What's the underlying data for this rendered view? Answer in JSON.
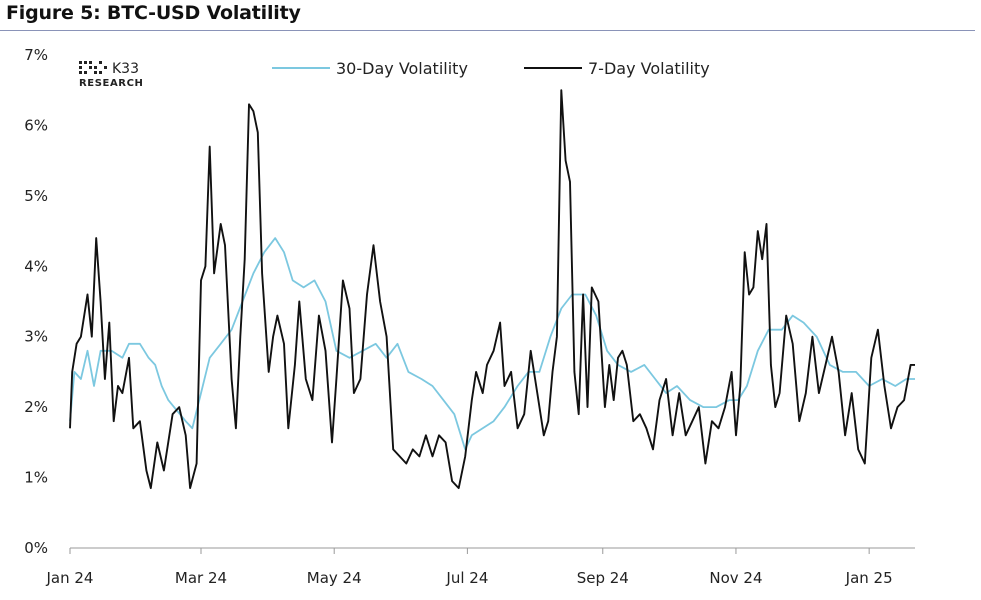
{
  "figure": {
    "title": "Figure 5: BTC-USD Volatility"
  },
  "logo": {
    "name": "K33",
    "sub": "RESEARCH"
  },
  "colors": {
    "series_30d": "#7cc8e0",
    "series_7d": "#111111",
    "axis": "#9a9a9a",
    "title_rule": "#8a93b8"
  },
  "chart_data": {
    "type": "line",
    "title": "Figure 5: BTC-USD Volatility",
    "xlabel": "",
    "ylabel": "",
    "x_ticks": [
      "Jan 24",
      "Mar 24",
      "May 24",
      "Jul 24",
      "Sep 24",
      "Nov 24",
      "Jan 25"
    ],
    "x_tick_dates": [
      "2024-01-01",
      "2024-03-01",
      "2024-05-01",
      "2024-07-01",
      "2024-09-01",
      "2024-11-01",
      "2025-01-01"
    ],
    "y_ticks": [
      "0%",
      "1%",
      "2%",
      "3%",
      "4%",
      "5%",
      "6%",
      "7%"
    ],
    "ylim": [
      0,
      7
    ],
    "xlim": [
      "2024-01-01",
      "2025-01-22"
    ],
    "y_unit": "%",
    "grid": false,
    "legend": {
      "placement": "top-center",
      "entries": [
        "30-Day Volatility",
        "7-Day Volatility"
      ]
    },
    "series": [
      {
        "name": "30-Day Volatility",
        "color": "#7cc8e0",
        "points": [
          [
            "2024-01-01",
            1.8
          ],
          [
            "2024-01-03",
            2.5
          ],
          [
            "2024-01-06",
            2.4
          ],
          [
            "2024-01-09",
            2.8
          ],
          [
            "2024-01-12",
            2.3
          ],
          [
            "2024-01-15",
            2.8
          ],
          [
            "2024-01-20",
            2.8
          ],
          [
            "2024-01-25",
            2.7
          ],
          [
            "2024-01-28",
            2.9
          ],
          [
            "2024-02-02",
            2.9
          ],
          [
            "2024-02-06",
            2.7
          ],
          [
            "2024-02-09",
            2.6
          ],
          [
            "2024-02-12",
            2.3
          ],
          [
            "2024-02-15",
            2.1
          ],
          [
            "2024-02-19",
            1.95
          ],
          [
            "2024-02-23",
            1.8
          ],
          [
            "2024-02-26",
            1.7
          ],
          [
            "2024-03-01",
            2.2
          ],
          [
            "2024-03-05",
            2.7
          ],
          [
            "2024-03-10",
            2.9
          ],
          [
            "2024-03-15",
            3.1
          ],
          [
            "2024-03-20",
            3.5
          ],
          [
            "2024-03-25",
            3.9
          ],
          [
            "2024-03-30",
            4.2
          ],
          [
            "2024-04-04",
            4.4
          ],
          [
            "2024-04-08",
            4.2
          ],
          [
            "2024-04-12",
            3.8
          ],
          [
            "2024-04-17",
            3.7
          ],
          [
            "2024-04-22",
            3.8
          ],
          [
            "2024-04-27",
            3.5
          ],
          [
            "2024-05-02",
            2.8
          ],
          [
            "2024-05-08",
            2.7
          ],
          [
            "2024-05-14",
            2.8
          ],
          [
            "2024-05-20",
            2.9
          ],
          [
            "2024-05-25",
            2.7
          ],
          [
            "2024-05-30",
            2.9
          ],
          [
            "2024-06-04",
            2.5
          ],
          [
            "2024-06-10",
            2.4
          ],
          [
            "2024-06-15",
            2.3
          ],
          [
            "2024-06-20",
            2.1
          ],
          [
            "2024-06-25",
            1.9
          ],
          [
            "2024-06-30",
            1.4
          ],
          [
            "2024-07-03",
            1.6
          ],
          [
            "2024-07-08",
            1.7
          ],
          [
            "2024-07-13",
            1.8
          ],
          [
            "2024-07-18",
            2.0
          ],
          [
            "2024-07-24",
            2.3
          ],
          [
            "2024-07-29",
            2.5
          ],
          [
            "2024-08-03",
            2.5
          ],
          [
            "2024-08-08",
            3.0
          ],
          [
            "2024-08-13",
            3.4
          ],
          [
            "2024-08-18",
            3.6
          ],
          [
            "2024-08-24",
            3.6
          ],
          [
            "2024-08-29",
            3.3
          ],
          [
            "2024-09-03",
            2.8
          ],
          [
            "2024-09-08",
            2.6
          ],
          [
            "2024-09-14",
            2.5
          ],
          [
            "2024-09-20",
            2.6
          ],
          [
            "2024-09-25",
            2.4
          ],
          [
            "2024-09-30",
            2.2
          ],
          [
            "2024-10-05",
            2.3
          ],
          [
            "2024-10-11",
            2.1
          ],
          [
            "2024-10-17",
            2.0
          ],
          [
            "2024-10-23",
            2.0
          ],
          [
            "2024-10-29",
            2.1
          ],
          [
            "2024-11-02",
            2.1
          ],
          [
            "2024-11-06",
            2.3
          ],
          [
            "2024-11-11",
            2.8
          ],
          [
            "2024-11-16",
            3.1
          ],
          [
            "2024-11-22",
            3.1
          ],
          [
            "2024-11-27",
            3.3
          ],
          [
            "2024-12-02",
            3.2
          ],
          [
            "2024-12-08",
            3.0
          ],
          [
            "2024-12-14",
            2.6
          ],
          [
            "2024-12-20",
            2.5
          ],
          [
            "2024-12-26",
            2.5
          ],
          [
            "2025-01-01",
            2.3
          ],
          [
            "2025-01-07",
            2.4
          ],
          [
            "2025-01-13",
            2.3
          ],
          [
            "2025-01-18",
            2.4
          ],
          [
            "2025-01-22",
            2.4
          ]
        ]
      },
      {
        "name": "7-Day Volatility",
        "color": "#111111",
        "points": [
          [
            "2024-01-01",
            1.7
          ],
          [
            "2024-01-02",
            2.5
          ],
          [
            "2024-01-04",
            2.9
          ],
          [
            "2024-01-06",
            3.0
          ],
          [
            "2024-01-09",
            3.6
          ],
          [
            "2024-01-11",
            3.0
          ],
          [
            "2024-01-13",
            4.4
          ],
          [
            "2024-01-15",
            3.5
          ],
          [
            "2024-01-17",
            2.4
          ],
          [
            "2024-01-19",
            3.2
          ],
          [
            "2024-01-21",
            1.8
          ],
          [
            "2024-01-23",
            2.3
          ],
          [
            "2024-01-25",
            2.2
          ],
          [
            "2024-01-28",
            2.7
          ],
          [
            "2024-01-30",
            1.7
          ],
          [
            "2024-02-02",
            1.8
          ],
          [
            "2024-02-05",
            1.1
          ],
          [
            "2024-02-07",
            0.85
          ],
          [
            "2024-02-10",
            1.5
          ],
          [
            "2024-02-13",
            1.1
          ],
          [
            "2024-02-17",
            1.9
          ],
          [
            "2024-02-20",
            2.0
          ],
          [
            "2024-02-23",
            1.6
          ],
          [
            "2024-02-25",
            0.85
          ],
          [
            "2024-02-28",
            1.2
          ],
          [
            "2024-03-01",
            3.8
          ],
          [
            "2024-03-03",
            4.0
          ],
          [
            "2024-03-05",
            5.7
          ],
          [
            "2024-03-07",
            3.9
          ],
          [
            "2024-03-10",
            4.6
          ],
          [
            "2024-03-12",
            4.3
          ],
          [
            "2024-03-15",
            2.4
          ],
          [
            "2024-03-17",
            1.7
          ],
          [
            "2024-03-19",
            3.0
          ],
          [
            "2024-03-21",
            4.1
          ],
          [
            "2024-03-23",
            6.3
          ],
          [
            "2024-03-25",
            6.2
          ],
          [
            "2024-03-27",
            5.9
          ],
          [
            "2024-03-29",
            3.9
          ],
          [
            "2024-04-01",
            2.5
          ],
          [
            "2024-04-03",
            3.0
          ],
          [
            "2024-04-05",
            3.3
          ],
          [
            "2024-04-08",
            2.9
          ],
          [
            "2024-04-10",
            1.7
          ],
          [
            "2024-04-13",
            2.6
          ],
          [
            "2024-04-15",
            3.5
          ],
          [
            "2024-04-18",
            2.4
          ],
          [
            "2024-04-21",
            2.1
          ],
          [
            "2024-04-24",
            3.3
          ],
          [
            "2024-04-27",
            2.8
          ],
          [
            "2024-04-30",
            1.5
          ],
          [
            "2024-05-02",
            2.4
          ],
          [
            "2024-05-05",
            3.8
          ],
          [
            "2024-05-08",
            3.4
          ],
          [
            "2024-05-10",
            2.2
          ],
          [
            "2024-05-13",
            2.4
          ],
          [
            "2024-05-16",
            3.6
          ],
          [
            "2024-05-19",
            4.3
          ],
          [
            "2024-05-22",
            3.5
          ],
          [
            "2024-05-25",
            3.0
          ],
          [
            "2024-05-28",
            1.4
          ],
          [
            "2024-05-31",
            1.3
          ],
          [
            "2024-06-03",
            1.2
          ],
          [
            "2024-06-06",
            1.4
          ],
          [
            "2024-06-09",
            1.3
          ],
          [
            "2024-06-12",
            1.6
          ],
          [
            "2024-06-15",
            1.3
          ],
          [
            "2024-06-18",
            1.6
          ],
          [
            "2024-06-21",
            1.5
          ],
          [
            "2024-06-24",
            0.95
          ],
          [
            "2024-06-27",
            0.85
          ],
          [
            "2024-06-30",
            1.3
          ],
          [
            "2024-07-03",
            2.1
          ],
          [
            "2024-07-05",
            2.5
          ],
          [
            "2024-07-08",
            2.2
          ],
          [
            "2024-07-10",
            2.6
          ],
          [
            "2024-07-13",
            2.8
          ],
          [
            "2024-07-16",
            3.2
          ],
          [
            "2024-07-18",
            2.3
          ],
          [
            "2024-07-21",
            2.5
          ],
          [
            "2024-07-24",
            1.7
          ],
          [
            "2024-07-27",
            1.9
          ],
          [
            "2024-07-30",
            2.8
          ],
          [
            "2024-08-02",
            2.2
          ],
          [
            "2024-08-05",
            1.6
          ],
          [
            "2024-08-07",
            1.8
          ],
          [
            "2024-08-09",
            2.5
          ],
          [
            "2024-08-11",
            3.0
          ],
          [
            "2024-08-13",
            6.5
          ],
          [
            "2024-08-15",
            5.5
          ],
          [
            "2024-08-17",
            5.2
          ],
          [
            "2024-08-19",
            2.5
          ],
          [
            "2024-08-21",
            1.9
          ],
          [
            "2024-08-23",
            3.6
          ],
          [
            "2024-08-25",
            2.0
          ],
          [
            "2024-08-27",
            3.7
          ],
          [
            "2024-08-30",
            3.5
          ],
          [
            "2024-09-02",
            2.0
          ],
          [
            "2024-09-04",
            2.6
          ],
          [
            "2024-09-06",
            2.1
          ],
          [
            "2024-09-08",
            2.7
          ],
          [
            "2024-09-10",
            2.8
          ],
          [
            "2024-09-12",
            2.6
          ],
          [
            "2024-09-15",
            1.8
          ],
          [
            "2024-09-18",
            1.9
          ],
          [
            "2024-09-21",
            1.7
          ],
          [
            "2024-09-24",
            1.4
          ],
          [
            "2024-09-27",
            2.1
          ],
          [
            "2024-09-30",
            2.4
          ],
          [
            "2024-10-03",
            1.6
          ],
          [
            "2024-10-06",
            2.2
          ],
          [
            "2024-10-09",
            1.6
          ],
          [
            "2024-10-12",
            1.8
          ],
          [
            "2024-10-15",
            2.0
          ],
          [
            "2024-10-18",
            1.2
          ],
          [
            "2024-10-21",
            1.8
          ],
          [
            "2024-10-24",
            1.7
          ],
          [
            "2024-10-27",
            2.0
          ],
          [
            "2024-10-30",
            2.5
          ],
          [
            "2024-11-01",
            1.6
          ],
          [
            "2024-11-03",
            2.3
          ],
          [
            "2024-11-05",
            4.2
          ],
          [
            "2024-11-07",
            3.6
          ],
          [
            "2024-11-09",
            3.7
          ],
          [
            "2024-11-11",
            4.5
          ],
          [
            "2024-11-13",
            4.1
          ],
          [
            "2024-11-15",
            4.6
          ],
          [
            "2024-11-17",
            2.6
          ],
          [
            "2024-11-19",
            2.0
          ],
          [
            "2024-11-21",
            2.2
          ],
          [
            "2024-11-24",
            3.3
          ],
          [
            "2024-11-27",
            2.9
          ],
          [
            "2024-11-30",
            1.8
          ],
          [
            "2024-12-03",
            2.2
          ],
          [
            "2024-12-06",
            3.0
          ],
          [
            "2024-12-09",
            2.2
          ],
          [
            "2024-12-12",
            2.6
          ],
          [
            "2024-12-15",
            3.0
          ],
          [
            "2024-12-18",
            2.5
          ],
          [
            "2024-12-21",
            1.6
          ],
          [
            "2024-12-24",
            2.2
          ],
          [
            "2024-12-27",
            1.4
          ],
          [
            "2024-12-30",
            1.2
          ],
          [
            "2025-01-02",
            2.7
          ],
          [
            "2025-01-05",
            3.1
          ],
          [
            "2025-01-08",
            2.3
          ],
          [
            "2025-01-11",
            1.7
          ],
          [
            "2025-01-14",
            2.0
          ],
          [
            "2025-01-17",
            2.1
          ],
          [
            "2025-01-20",
            2.6
          ],
          [
            "2025-01-22",
            2.6
          ]
        ]
      }
    ]
  }
}
